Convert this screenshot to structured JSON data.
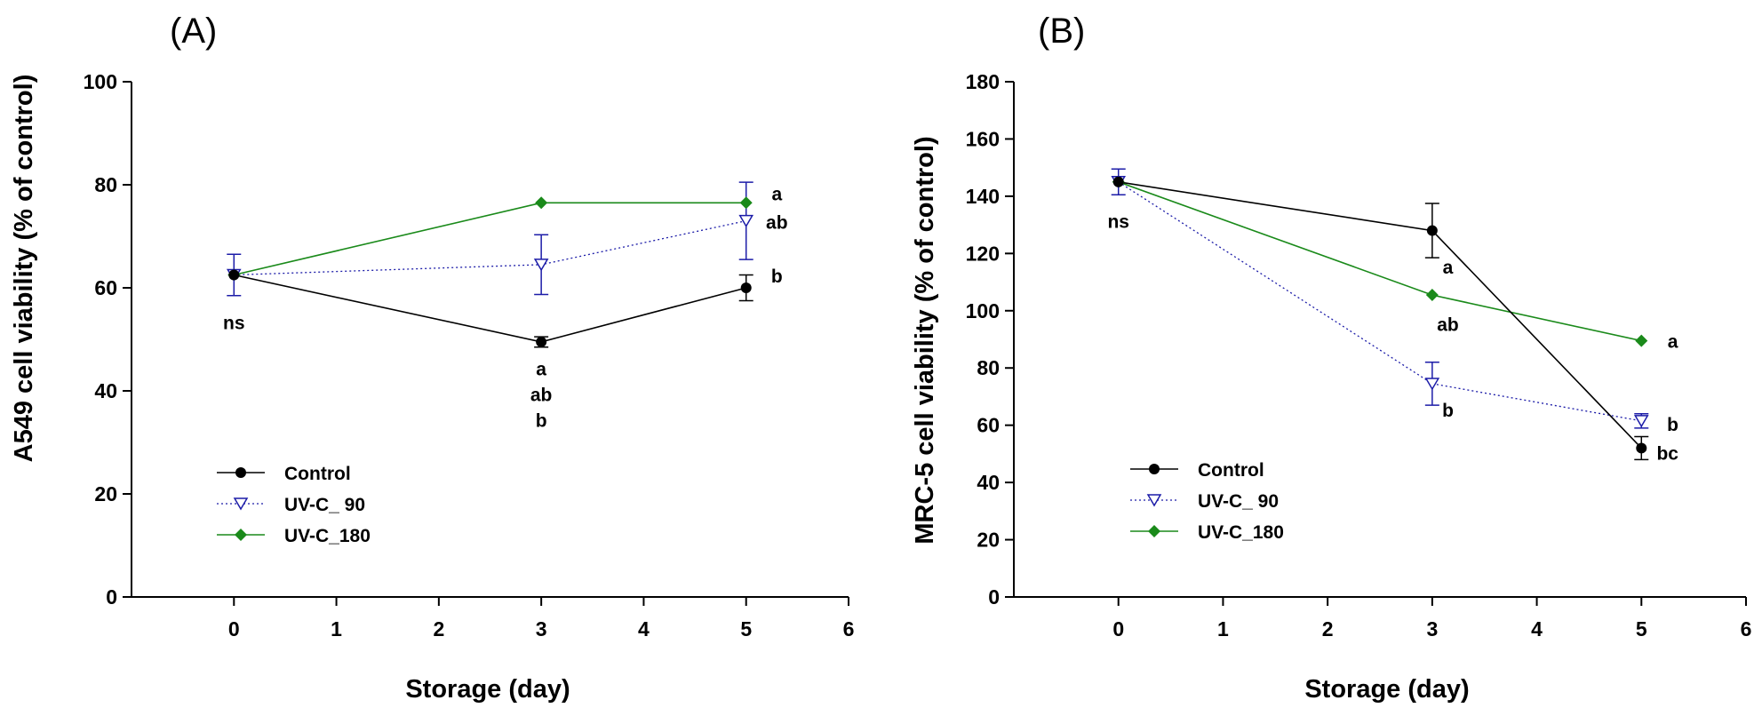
{
  "chart_data": [
    {
      "type": "line",
      "panel_label": "(A)",
      "xlabel": "Storage (day)",
      "ylabel": "A549 cell viability (% of control)",
      "xlim": [
        -1,
        6
      ],
      "ylim": [
        0,
        100
      ],
      "xticks": [
        "0",
        "1",
        "2",
        "3",
        "4",
        "5",
        "6"
      ],
      "yticks": [
        "0",
        "20",
        "40",
        "60",
        "80",
        "100"
      ],
      "x": [
        0,
        3,
        5
      ],
      "series": [
        {
          "name": "Control",
          "values": [
            62.5,
            49.5,
            60
          ],
          "errors": [
            0,
            1,
            2.5
          ],
          "color": "#000000",
          "marker": "circle",
          "line": "solid"
        },
        {
          "name": "UV-C_ 90",
          "values": [
            62.5,
            64.5,
            73
          ],
          "errors": [
            4,
            5.8,
            7.5
          ],
          "color": "#1c1ca8",
          "marker": "triangle-down-open",
          "line": "dotted"
        },
        {
          "name": "UV-C_180",
          "values": [
            62.5,
            76.5,
            76.5
          ],
          "errors": [
            0,
            0,
            0
          ],
          "color": "#1a8a1a",
          "marker": "diamond",
          "line": "solid"
        }
      ],
      "annotations": [
        {
          "x": 0,
          "y": 52,
          "text": "ns"
        },
        {
          "x": 3,
          "y": 43,
          "text": "a"
        },
        {
          "x": 3,
          "y": 38,
          "text": "ab"
        },
        {
          "x": 3,
          "y": 33,
          "text": "b"
        },
        {
          "x": 5.3,
          "y": 77,
          "text": "a"
        },
        {
          "x": 5.3,
          "y": 71.5,
          "text": "ab"
        },
        {
          "x": 5.3,
          "y": 61,
          "text": "b"
        }
      ],
      "legend_position": "bottom-left"
    },
    {
      "type": "line",
      "panel_label": "(B)",
      "xlabel": "Storage (day)",
      "ylabel": "MRC-5 cell viability (% of control)",
      "xlim": [
        -1,
        6
      ],
      "ylim": [
        0,
        180
      ],
      "xticks": [
        "0",
        "1",
        "2",
        "3",
        "4",
        "5",
        "6"
      ],
      "yticks": [
        "0",
        "20",
        "40",
        "60",
        "80",
        "100",
        "120",
        "140",
        "160",
        "180"
      ],
      "x": [
        0,
        3,
        5
      ],
      "series": [
        {
          "name": "Control",
          "values": [
            145,
            128,
            52
          ],
          "errors": [
            0,
            9.5,
            4
          ],
          "color": "#000000",
          "marker": "circle",
          "line": "solid"
        },
        {
          "name": "UV-C_ 90",
          "values": [
            145,
            74.5,
            61.5
          ],
          "errors": [
            4.5,
            7.5,
            2.5
          ],
          "color": "#1c1ca8",
          "marker": "triangle-down-open",
          "line": "dotted"
        },
        {
          "name": "UV-C_180",
          "values": [
            145,
            105.5,
            89.5
          ],
          "errors": [
            0,
            0,
            0
          ],
          "color": "#1a8a1a",
          "marker": "diamond",
          "line": "solid"
        }
      ],
      "annotations": [
        {
          "x": 0,
          "y": 129,
          "text": "ns"
        },
        {
          "x": 3.15,
          "y": 113,
          "text": "a"
        },
        {
          "x": 3.15,
          "y": 93,
          "text": "ab"
        },
        {
          "x": 3.15,
          "y": 63,
          "text": "b"
        },
        {
          "x": 5.3,
          "y": 87,
          "text": "a"
        },
        {
          "x": 5.3,
          "y": 58,
          "text": "b"
        },
        {
          "x": 5.25,
          "y": 48,
          "text": "bc"
        }
      ],
      "legend_position": "bottom-left"
    }
  ]
}
